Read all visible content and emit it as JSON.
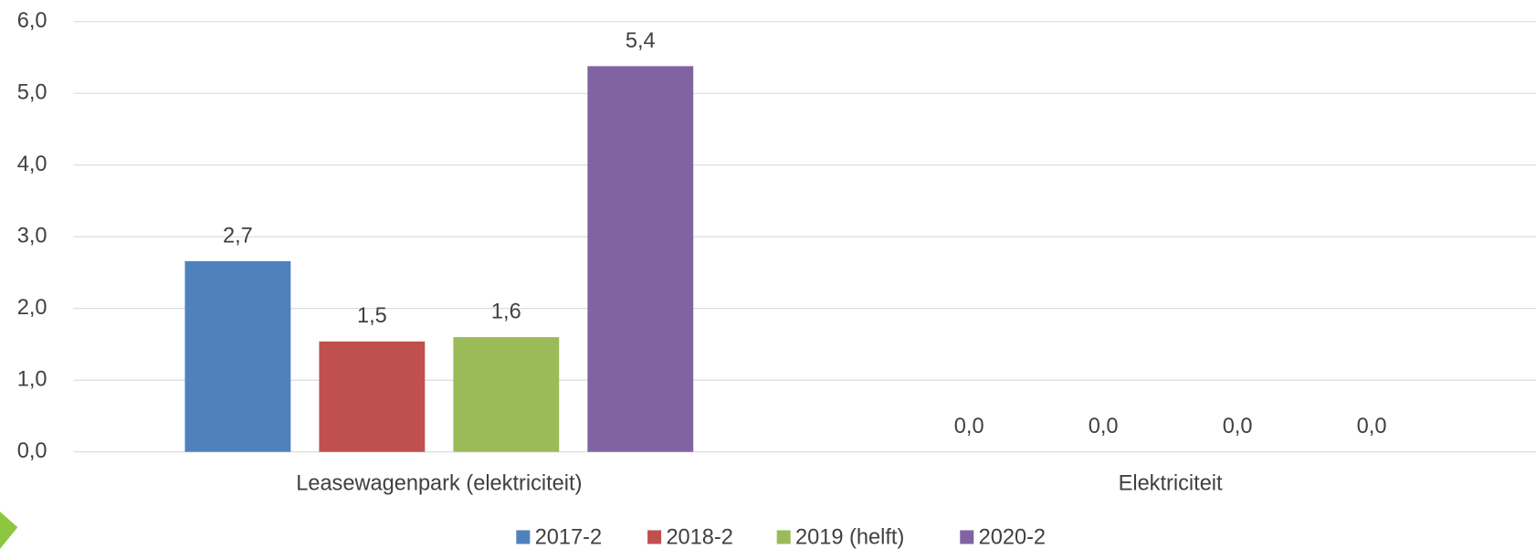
{
  "chart_data": {
    "type": "bar",
    "categories": [
      "Leasewagenpark (elektriciteit)",
      "Elektriciteit"
    ],
    "series": [
      {
        "name": "2017-2",
        "color": "#4f81bd",
        "values": [
          2.66,
          0
        ],
        "value_labels": [
          "2,7",
          "0,0"
        ]
      },
      {
        "name": "2018-2",
        "color": "#c0504d",
        "values": [
          1.54,
          0
        ],
        "value_labels": [
          "1,5",
          "0,0"
        ]
      },
      {
        "name": "2019 (helft)",
        "color": "#9bbb59",
        "values": [
          1.6,
          0
        ],
        "value_labels": [
          "1,6",
          "0,0"
        ]
      },
      {
        "name": "2020-2",
        "color": "#8064a2",
        "values": [
          5.38,
          0
        ],
        "value_labels": [
          "5,4",
          "0,0"
        ]
      }
    ],
    "ylim": [
      0,
      6
    ],
    "yticks": [
      {
        "value": 0,
        "label": "0,0"
      },
      {
        "value": 1,
        "label": "1,0"
      },
      {
        "value": 2,
        "label": "2,0"
      },
      {
        "value": 3,
        "label": "3,0"
      },
      {
        "value": 4,
        "label": "4,0"
      },
      {
        "value": 5,
        "label": "5,0"
      },
      {
        "value": 6,
        "label": "6,0"
      }
    ],
    "grid": true,
    "legend": "bottom"
  }
}
